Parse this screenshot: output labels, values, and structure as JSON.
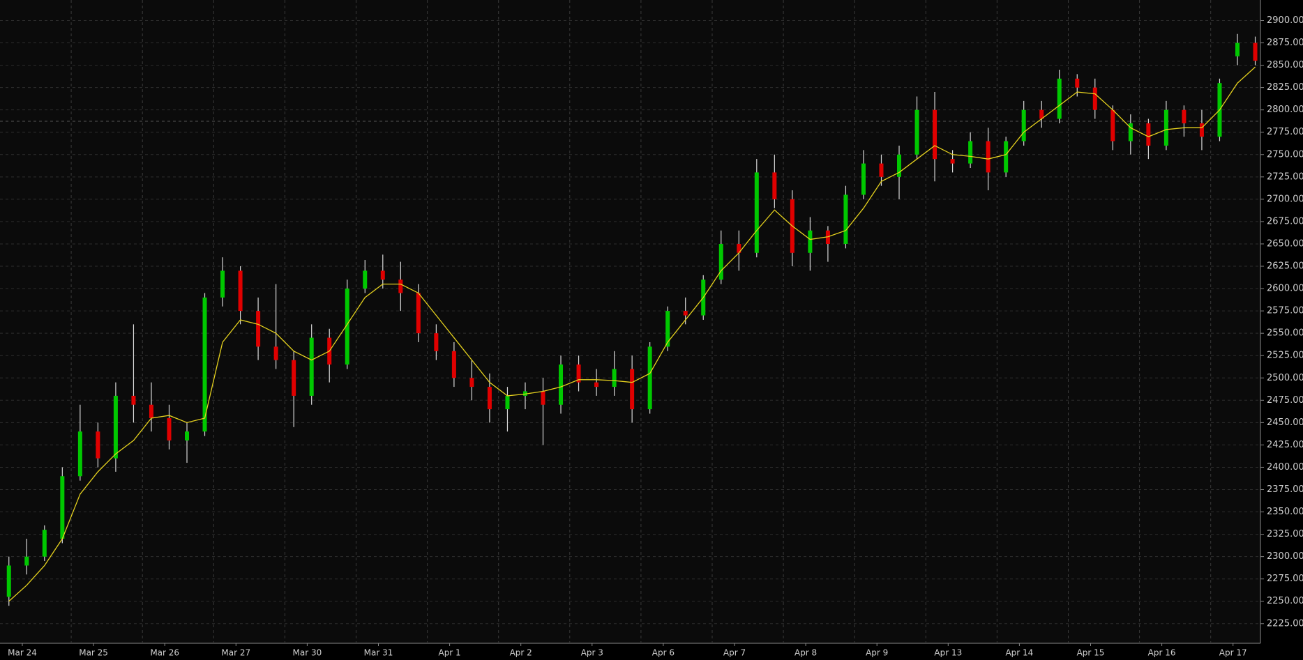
{
  "chart_data": {
    "type": "candlestick",
    "categories": [
      "Mar 24",
      null,
      null,
      null,
      "Mar 25",
      null,
      null,
      null,
      "Mar 26",
      null,
      null,
      null,
      "Mar 27",
      null,
      null,
      null,
      "Mar 30",
      null,
      null,
      null,
      "Mar 31",
      null,
      null,
      null,
      "Apr 1",
      null,
      null,
      null,
      "Apr 2",
      null,
      null,
      null,
      "Apr 3",
      null,
      null,
      null,
      "Apr 6",
      null,
      null,
      null,
      "Apr 7",
      null,
      null,
      null,
      "Apr 8",
      null,
      null,
      null,
      "Apr 9",
      null,
      null,
      null,
      "Apr 13",
      null,
      null,
      null,
      "Apr 14",
      null,
      null,
      null,
      "Apr 15",
      null,
      null,
      null,
      "Apr 16",
      null,
      null,
      null,
      "Apr 17",
      null,
      null
    ],
    "open": [
      2255,
      2290,
      2300,
      2320,
      2390,
      2440,
      2410,
      2480,
      2470,
      2455,
      2430,
      2440,
      2590,
      2620,
      2575,
      2535,
      2520,
      2480,
      2545,
      2515,
      2600,
      2620,
      2610,
      2595,
      2550,
      2530,
      2500,
      2490,
      2465,
      2480,
      2485,
      2470,
      2515,
      2495,
      2490,
      2510,
      2465,
      2535,
      2575,
      2570,
      2610,
      2650,
      2640,
      2730,
      2700,
      2640,
      2665,
      2650,
      2705,
      2740,
      2725,
      2750,
      2800,
      2745,
      2740,
      2765,
      2730,
      2765,
      2800,
      2790,
      2835,
      2825,
      2800,
      2765,
      2785,
      2760,
      2800,
      2785,
      2770,
      2860,
      2875
    ],
    "high": [
      2300,
      2320,
      2335,
      2400,
      2470,
      2450,
      2495,
      2560,
      2495,
      2470,
      2450,
      2595,
      2635,
      2625,
      2590,
      2605,
      2530,
      2560,
      2555,
      2610,
      2632,
      2638,
      2630,
      2605,
      2560,
      2540,
      2520,
      2505,
      2490,
      2495,
      2500,
      2525,
      2525,
      2510,
      2530,
      2525,
      2540,
      2580,
      2590,
      2615,
      2665,
      2665,
      2745,
      2750,
      2710,
      2680,
      2670,
      2715,
      2755,
      2750,
      2760,
      2815,
      2820,
      2755,
      2775,
      2780,
      2770,
      2810,
      2810,
      2845,
      2840,
      2835,
      2805,
      2795,
      2790,
      2810,
      2805,
      2800,
      2835,
      2885,
      2882
    ],
    "low": [
      2245,
      2280,
      2295,
      2315,
      2385,
      2400,
      2395,
      2450,
      2440,
      2420,
      2405,
      2435,
      2580,
      2560,
      2520,
      2510,
      2445,
      2470,
      2495,
      2510,
      2595,
      2600,
      2575,
      2540,
      2520,
      2490,
      2475,
      2450,
      2440,
      2465,
      2425,
      2460,
      2485,
      2480,
      2480,
      2450,
      2460,
      2530,
      2560,
      2565,
      2605,
      2620,
      2635,
      2690,
      2625,
      2620,
      2630,
      2645,
      2700,
      2715,
      2700,
      2745,
      2720,
      2730,
      2735,
      2710,
      2725,
      2760,
      2780,
      2785,
      2815,
      2790,
      2755,
      2750,
      2745,
      2755,
      2770,
      2755,
      2765,
      2850,
      2850
    ],
    "close": [
      2290,
      2300,
      2330,
      2390,
      2440,
      2410,
      2480,
      2470,
      2455,
      2430,
      2440,
      2590,
      2620,
      2575,
      2535,
      2520,
      2480,
      2545,
      2515,
      2600,
      2620,
      2610,
      2595,
      2550,
      2530,
      2500,
      2490,
      2465,
      2480,
      2485,
      2470,
      2515,
      2495,
      2490,
      2510,
      2465,
      2535,
      2575,
      2570,
      2610,
      2650,
      2640,
      2730,
      2700,
      2640,
      2665,
      2650,
      2705,
      2740,
      2725,
      2750,
      2800,
      2745,
      2740,
      2765,
      2730,
      2765,
      2800,
      2790,
      2835,
      2825,
      2800,
      2765,
      2785,
      2760,
      2800,
      2785,
      2770,
      2830,
      2875,
      2855
    ],
    "up_color": "#00c800",
    "down_color": "#e00000",
    "wick_color": "#d8d8d8",
    "ma": {
      "color": "#e6d21e",
      "values": [
        2250,
        2268,
        2290,
        2320,
        2370,
        2395,
        2415,
        2430,
        2455,
        2458,
        2450,
        2455,
        2540,
        2565,
        2560,
        2550,
        2530,
        2520,
        2530,
        2560,
        2590,
        2605,
        2605,
        2595,
        2570,
        2545,
        2520,
        2495,
        2480,
        2482,
        2485,
        2490,
        2498,
        2498,
        2497,
        2495,
        2505,
        2540,
        2565,
        2590,
        2620,
        2640,
        2665,
        2688,
        2670,
        2655,
        2658,
        2665,
        2690,
        2720,
        2730,
        2745,
        2760,
        2750,
        2748,
        2745,
        2750,
        2775,
        2790,
        2805,
        2820,
        2818,
        2800,
        2780,
        2770,
        2778,
        2780,
        2780,
        2800,
        2830,
        2848
      ]
    },
    "ylim": [
      2203,
      2923
    ],
    "yticks": [
      {
        "value": 2225,
        "label": "2225.00"
      },
      {
        "value": 2250,
        "label": "2250.00"
      },
      {
        "value": 2275,
        "label": "2275.00"
      },
      {
        "value": 2300,
        "label": "2300.00"
      },
      {
        "value": 2325,
        "label": "2325.00"
      },
      {
        "value": 2350,
        "label": "2350.00"
      },
      {
        "value": 2375,
        "label": "2375.00"
      },
      {
        "value": 2400,
        "label": "2400.00"
      },
      {
        "value": 2425,
        "label": "2425.00"
      },
      {
        "value": 2450,
        "label": "2450.00"
      },
      {
        "value": 2475,
        "label": "2475.00"
      },
      {
        "value": 2500,
        "label": "2500.00"
      },
      {
        "value": 2525,
        "label": "2525.00"
      },
      {
        "value": 2550,
        "label": "2550.00"
      },
      {
        "value": 2575,
        "label": "2575.00"
      },
      {
        "value": 2600,
        "label": "2600.00"
      },
      {
        "value": 2625,
        "label": "2625.00"
      },
      {
        "value": 2650,
        "label": "2650.00"
      },
      {
        "value": 2675,
        "label": "2675.00"
      },
      {
        "value": 2700,
        "label": "2700.00"
      },
      {
        "value": 2725,
        "label": "2725.00"
      },
      {
        "value": 2750,
        "label": "2750.00"
      },
      {
        "value": 2775,
        "label": "2775.00"
      },
      {
        "value": 2800,
        "label": "2800.00"
      },
      {
        "value": 2825,
        "label": "2825.00"
      },
      {
        "value": 2850,
        "label": "2850.00"
      },
      {
        "value": 2875,
        "label": "2875.00"
      },
      {
        "value": 2900,
        "label": "2900.00"
      }
    ],
    "grid": true
  }
}
